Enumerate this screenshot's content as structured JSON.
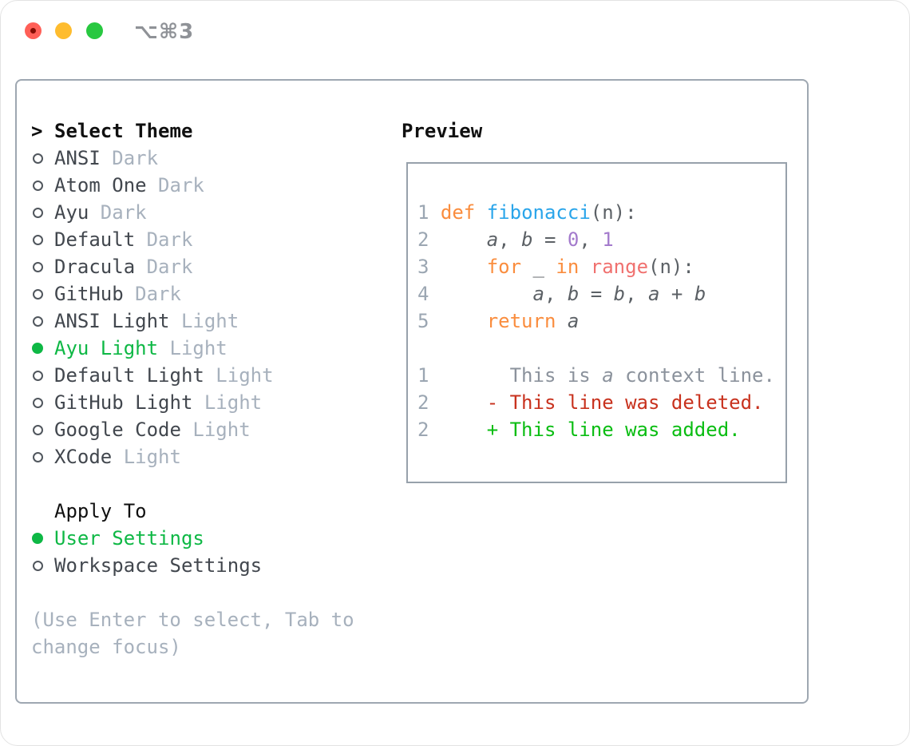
{
  "titlebar": {
    "title": "⌥⌘3",
    "buttons": [
      "close",
      "minimize",
      "zoom"
    ]
  },
  "theme_list": {
    "prompt": ">",
    "header": "Select Theme",
    "items": [
      {
        "name": "ANSI",
        "variant": "Dark",
        "selected": false
      },
      {
        "name": "Atom One",
        "variant": "Dark",
        "selected": false
      },
      {
        "name": "Ayu",
        "variant": "Dark",
        "selected": false
      },
      {
        "name": "Default",
        "variant": "Dark",
        "selected": false
      },
      {
        "name": "Dracula",
        "variant": "Dark",
        "selected": false
      },
      {
        "name": "GitHub",
        "variant": "Dark",
        "selected": false
      },
      {
        "name": "ANSI Light",
        "variant": "Light",
        "selected": false
      },
      {
        "name": "Ayu Light",
        "variant": "Light",
        "selected": true
      },
      {
        "name": "Default Light",
        "variant": "Light",
        "selected": false
      },
      {
        "name": "GitHub Light",
        "variant": "Light",
        "selected": false
      },
      {
        "name": "Google Code",
        "variant": "Light",
        "selected": false
      },
      {
        "name": "XCode",
        "variant": "Light",
        "selected": false
      }
    ]
  },
  "apply_to": {
    "header": "Apply To",
    "options": [
      {
        "name": "User Settings",
        "selected": true
      },
      {
        "name": "Workspace Settings",
        "selected": false
      }
    ]
  },
  "hint_lines": [
    "(Use Enter to select, Tab to",
    "change focus)"
  ],
  "preview": {
    "header": "Preview",
    "lines": [
      [
        [
          "1 ",
          "ln"
        ],
        [
          "def",
          "kw"
        ],
        [
          " ",
          "fg"
        ],
        [
          "fibonacci",
          "fn"
        ],
        [
          "(n):",
          "fg"
        ]
      ],
      [
        [
          "2 ",
          "ln"
        ],
        [
          "    ",
          "fg"
        ],
        [
          "a",
          "fg",
          1
        ],
        [
          ", ",
          "fg"
        ],
        [
          "b",
          "fg",
          1
        ],
        [
          " = ",
          "fg"
        ],
        [
          "0",
          "num"
        ],
        [
          ", ",
          "fg"
        ],
        [
          "1",
          "num"
        ]
      ],
      [
        [
          "3 ",
          "ln"
        ],
        [
          "    ",
          "fg"
        ],
        [
          "for",
          "kw"
        ],
        [
          " _ ",
          "fg"
        ],
        [
          "in",
          "kw"
        ],
        [
          " ",
          "fg"
        ],
        [
          "range",
          "bi"
        ],
        [
          "(n):",
          "fg"
        ]
      ],
      [
        [
          "4 ",
          "ln"
        ],
        [
          "        ",
          "fg"
        ],
        [
          "a",
          "fg",
          1
        ],
        [
          ", ",
          "fg"
        ],
        [
          "b",
          "fg",
          1
        ],
        [
          " = ",
          "fg"
        ],
        [
          "b",
          "fg",
          1
        ],
        [
          ", ",
          "fg"
        ],
        [
          "a",
          "fg",
          1
        ],
        [
          " + ",
          "fg"
        ],
        [
          "b",
          "fg",
          1
        ]
      ],
      [
        [
          "5 ",
          "ln"
        ],
        [
          "    ",
          "fg"
        ],
        [
          "return",
          "kw"
        ],
        [
          " ",
          "fg"
        ],
        [
          "a",
          "fg",
          1
        ]
      ],
      [],
      [
        [
          "1 ",
          "ln"
        ],
        [
          "      This is ",
          "ctx"
        ],
        [
          "a",
          "ctx",
          1
        ],
        [
          " context line.",
          "ctx"
        ]
      ],
      [
        [
          "2 ",
          "ln"
        ],
        [
          "    ",
          "fg"
        ],
        [
          "- This line was deleted.",
          "del"
        ]
      ],
      [
        [
          "2 ",
          "ln"
        ],
        [
          "    ",
          "fg"
        ],
        [
          "+ This line was added.",
          "add"
        ]
      ]
    ]
  },
  "colors": {
    "selection_green": "#0eb845",
    "item_text": "#42474e",
    "muted_text": "#a7b1bd",
    "header_text": "#101010",
    "panel_border": "#9ea7b1",
    "preview_border": "#97a1ab",
    "title_text": "#8f9297",
    "circle_outline": "#50565d",
    "traffic": {
      "red": "#ff5f57",
      "red_dot": "#850d04",
      "yellow": "#febc2e",
      "green": "#28c840"
    },
    "code": {
      "ln": "#9ba6b2",
      "fg": "#5c6166",
      "kw": "#fa8d3e",
      "fn": "#2aa5ea",
      "num": "#a37acc",
      "bi": "#f0716f",
      "ctx": "#8b929c",
      "del": "#c8321e",
      "add": "#0abd12"
    }
  }
}
